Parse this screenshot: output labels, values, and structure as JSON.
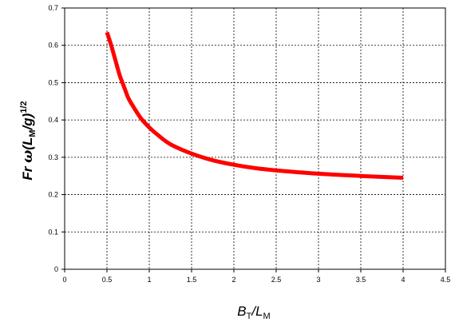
{
  "chart_data": {
    "type": "line",
    "title": "",
    "xlabel": {
      "main": "B",
      "sub1": "T",
      "sep": "/",
      "main2": "L",
      "sub2": "M"
    },
    "ylabel": {
      "pre": "Fr ",
      "omega": "ω",
      "open": "(",
      "L": "L",
      "sub": "M",
      "slash": "/",
      "g": "g",
      "close": ")",
      "sup": "1/2"
    },
    "xlim": [
      0,
      4.5
    ],
    "ylim": [
      0,
      0.7
    ],
    "x_ticks": [
      "0",
      "0.5",
      "1",
      "1.5",
      "2",
      "2.5",
      "3",
      "3.5",
      "4",
      "4.5"
    ],
    "y_ticks": [
      "0",
      "0.1",
      "0.2",
      "0.3",
      "0.4",
      "0.5",
      "0.6",
      "0.7"
    ],
    "grid": true,
    "legend": "none",
    "series": [
      {
        "color": "#ff0000",
        "x": [
          0.5,
          0.55,
          0.6,
          0.65,
          0.7,
          0.75,
          0.8,
          0.9,
          1.0,
          1.1,
          1.25,
          1.5,
          1.75,
          2.0,
          2.25,
          2.5,
          3.0,
          3.5,
          4.0
        ],
        "y": [
          0.635,
          0.6,
          0.56,
          0.52,
          0.49,
          0.46,
          0.44,
          0.405,
          0.38,
          0.36,
          0.335,
          0.31,
          0.292,
          0.28,
          0.271,
          0.265,
          0.256,
          0.25,
          0.245
        ]
      }
    ]
  }
}
